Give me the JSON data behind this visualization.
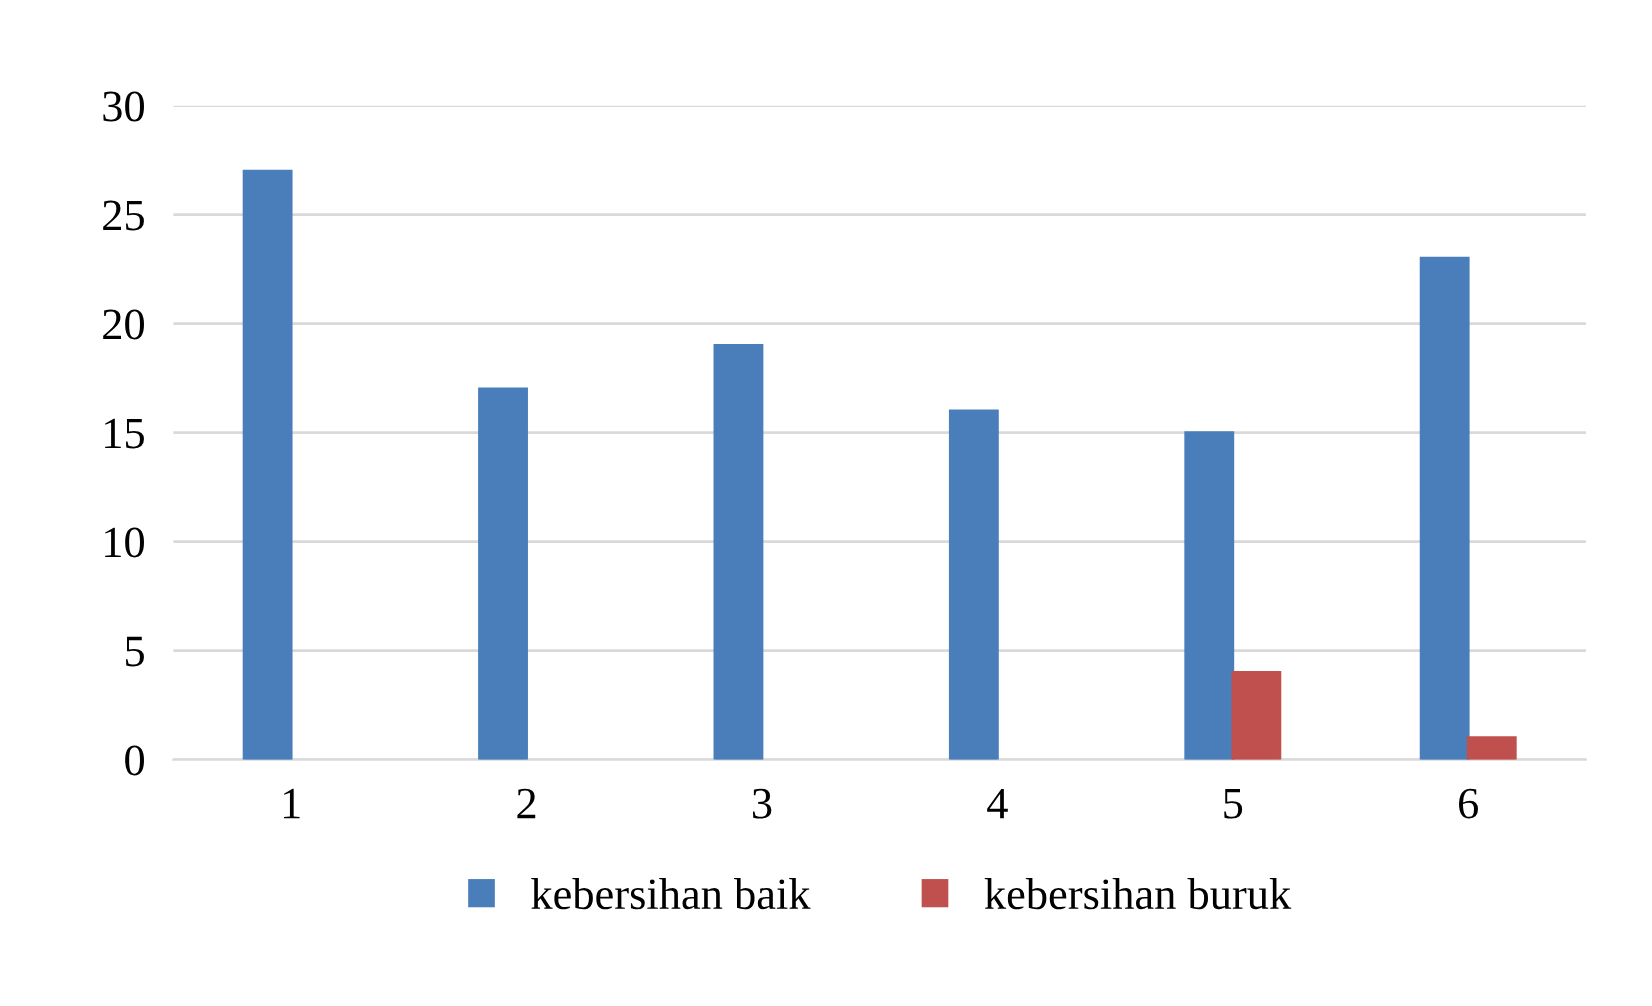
{
  "chart_data": {
    "type": "bar",
    "categories": [
      "1",
      "2",
      "3",
      "4",
      "5",
      "6"
    ],
    "series": [
      {
        "name": "kebersihan baik",
        "color": "#4a7ebb",
        "values": [
          27,
          17,
          19,
          16,
          15,
          23
        ]
      },
      {
        "name": "kebersihan buruk",
        "color": "#c0504d",
        "values": [
          null,
          null,
          null,
          null,
          4,
          1
        ]
      }
    ],
    "ylim": [
      0,
      30
    ],
    "yticks": [
      0,
      5,
      10,
      15,
      20,
      25,
      30
    ],
    "grid": "y",
    "legend": "bottom"
  }
}
